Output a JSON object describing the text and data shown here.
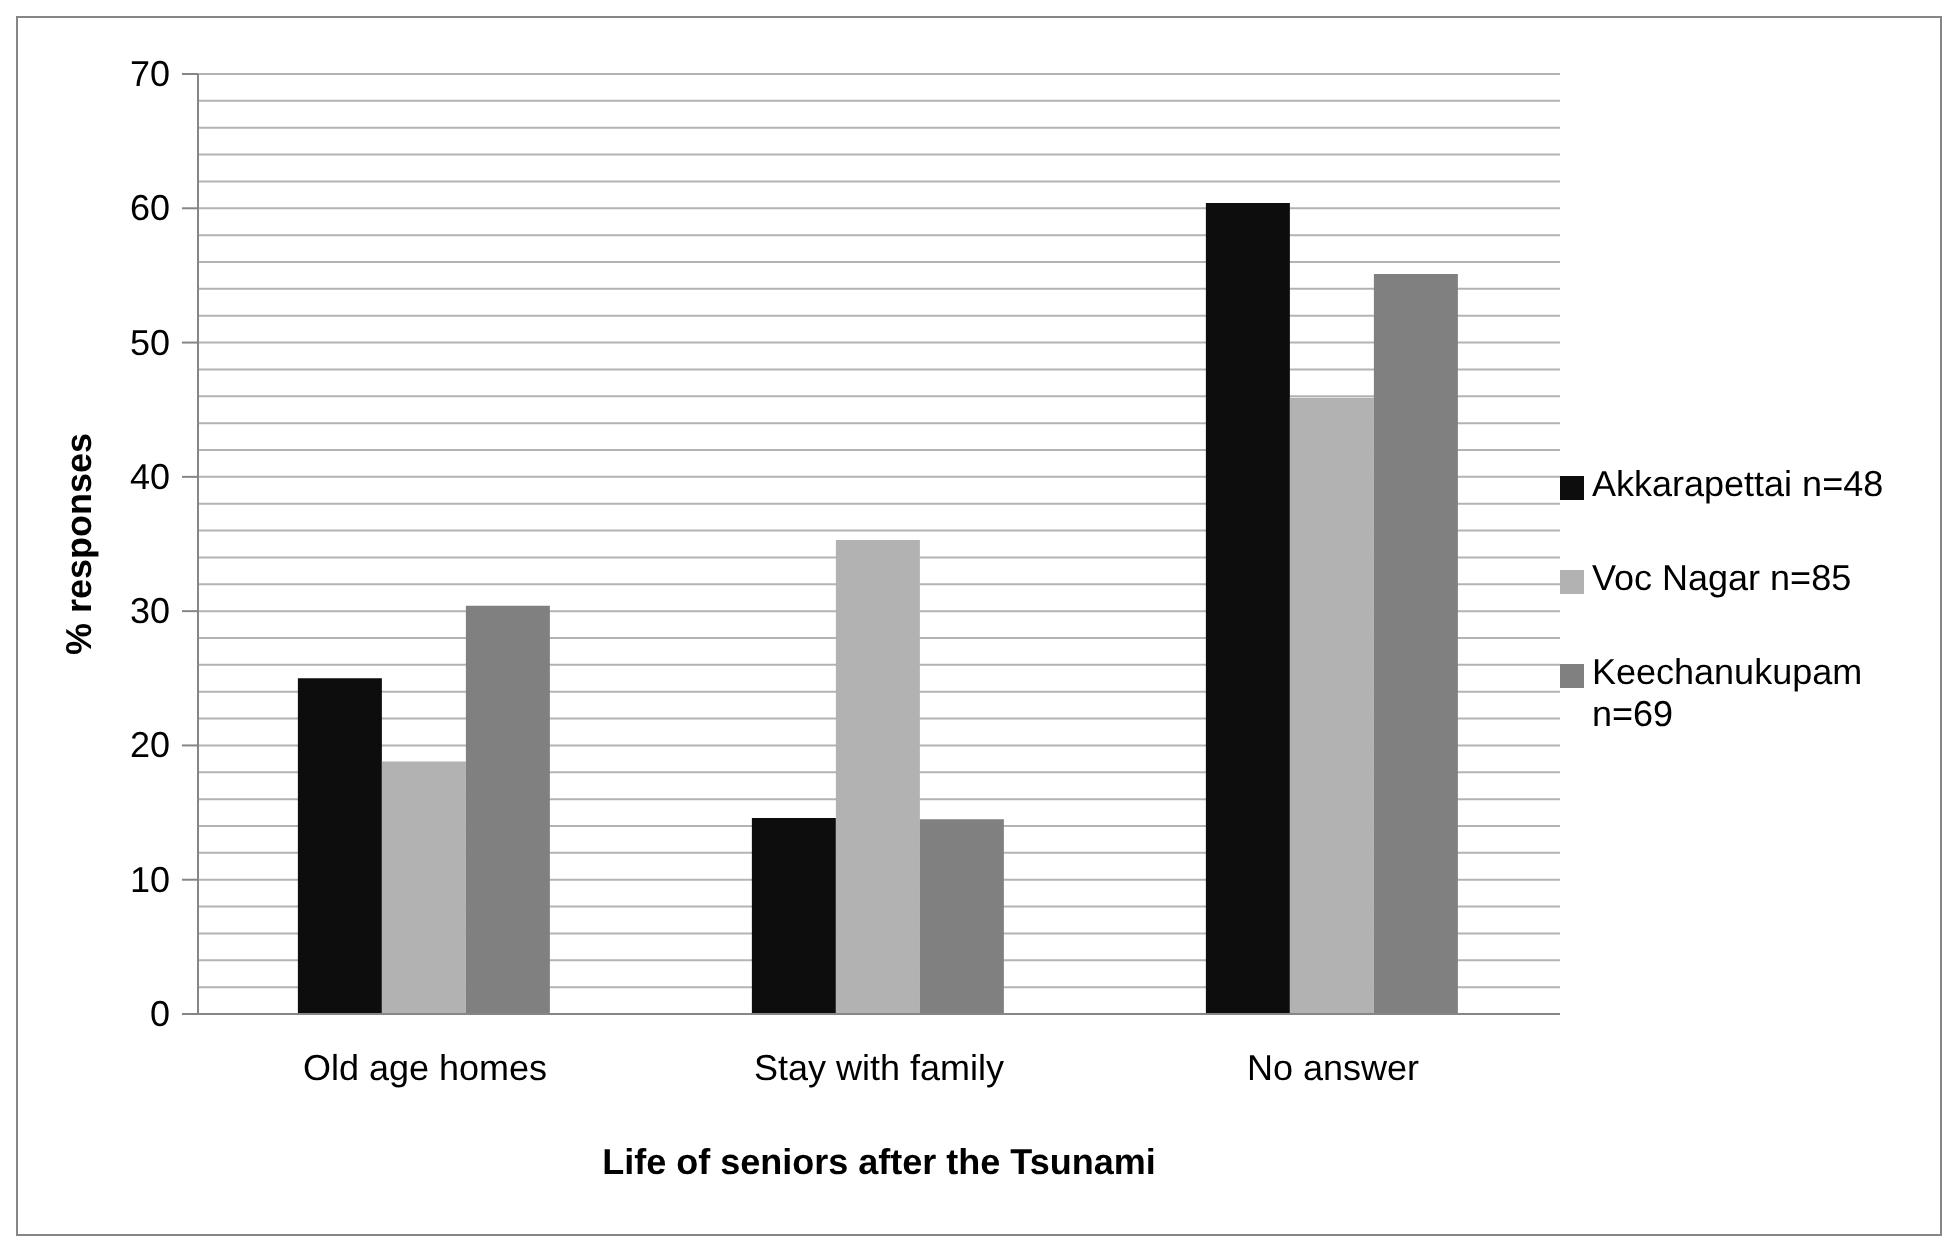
{
  "chart_data": {
    "type": "bar",
    "xlabel": "Life of seniors after the Tsunami",
    "ylabel": "% responses",
    "categories": [
      "Old age homes",
      "Stay with family",
      "No answer"
    ],
    "series": [
      {
        "name": "Akkarapettai n=48",
        "color": "#0d0d0d",
        "values": [
          25,
          14.6,
          60.4
        ]
      },
      {
        "name": "Voc Nagar n=85",
        "color": "#b2b2b2",
        "values": [
          18.8,
          35.3,
          45.9
        ]
      },
      {
        "name": "Keechanukupam n=69",
        "color": "#808080",
        "values": [
          30.4,
          14.5,
          55.1
        ]
      }
    ],
    "ylim": [
      0,
      70
    ],
    "yticks": [
      0,
      {
        "value": 2,
        "label": null
      },
      {
        "value": 4,
        "label": null
      },
      {
        "value": 6,
        "label": null
      },
      {
        "value": 8,
        "label": null
      },
      10,
      {
        "value": 12,
        "label": null
      },
      {
        "value": 14,
        "label": null
      },
      {
        "value": 16,
        "label": null
      },
      {
        "value": 18,
        "label": null
      },
      20,
      {
        "value": 22,
        "label": null
      },
      {
        "value": 24,
        "label": null
      },
      {
        "value": 26,
        "label": null
      },
      {
        "value": 28,
        "label": null
      },
      30,
      {
        "value": 32,
        "label": null
      },
      {
        "value": 34,
        "label": null
      },
      {
        "value": 36,
        "label": null
      },
      {
        "value": 38,
        "label": null
      },
      40,
      {
        "value": 42,
        "label": null
      },
      {
        "value": 44,
        "label": null
      },
      {
        "value": 46,
        "label": null
      },
      {
        "value": 48,
        "label": null
      },
      50,
      {
        "value": 52,
        "label": null
      },
      {
        "value": 54,
        "label": null
      },
      {
        "value": 56,
        "label": null
      },
      {
        "value": 58,
        "label": null
      },
      60,
      {
        "value": 62,
        "label": null
      },
      {
        "value": 64,
        "label": null
      },
      {
        "value": 66,
        "label": null
      },
      {
        "value": 68,
        "label": null
      },
      70
    ],
    "grid": "y",
    "legend": "right"
  }
}
